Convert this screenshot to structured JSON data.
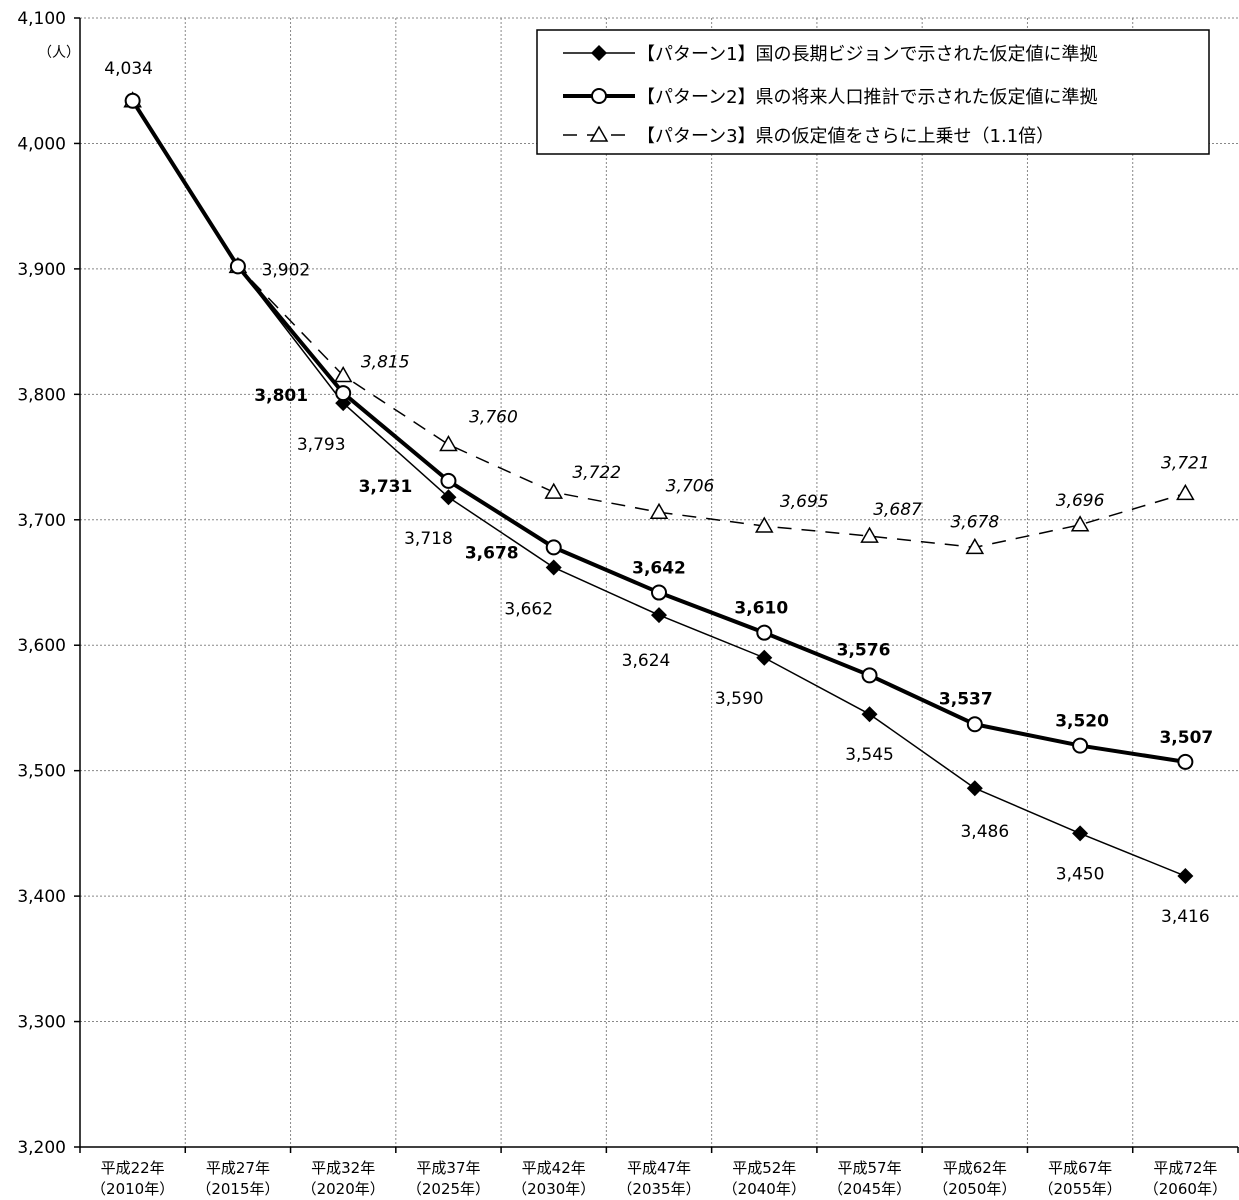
{
  "chart_data": {
    "type": "line",
    "unit_label": "（人）",
    "ylim": [
      3200,
      4100
    ],
    "yticks": [
      3200,
      3300,
      3400,
      3500,
      3600,
      3700,
      3800,
      3900,
      4000,
      4100
    ],
    "ytick_labels": [
      "3,200",
      "3,300",
      "3,400",
      "3,500",
      "3,600",
      "3,700",
      "3,800",
      "3,900",
      "4,000",
      "4,100"
    ],
    "x_labels": [
      [
        "平成22年",
        "（2010年）"
      ],
      [
        "平成27年",
        "（2015年）"
      ],
      [
        "平成32年",
        "（2020年）"
      ],
      [
        "平成37年",
        "（2025年）"
      ],
      [
        "平成42年",
        "（2030年）"
      ],
      [
        "平成47年",
        "（2035年）"
      ],
      [
        "平成52年",
        "（2040年）"
      ],
      [
        "平成57年",
        "（2045年）"
      ],
      [
        "平成62年",
        "（2050年）"
      ],
      [
        "平成67年",
        "（2055年）"
      ],
      [
        "平成72年",
        "（2060年）"
      ]
    ],
    "grid": true,
    "legend_position": "top-right",
    "series": [
      {
        "name": "【パターン1】国の長期ビジョンで示された仮定値に準拠",
        "values": [
          4034,
          3902,
          3793,
          3718,
          3662,
          3624,
          3590,
          3545,
          3486,
          3450,
          3416
        ],
        "labels": [
          "4,034",
          "3,902",
          "3,793",
          "3,718",
          "3,662",
          "3,624",
          "3,590",
          "3,545",
          "3,486",
          "3,450",
          "3,416"
        ],
        "marker": "diamond",
        "line": "thin-solid"
      },
      {
        "name": "【パターン2】県の将来人口推計で示された仮定値に準拠",
        "values": [
          4034,
          3902,
          3801,
          3731,
          3678,
          3642,
          3610,
          3576,
          3537,
          3520,
          3507
        ],
        "labels": [
          "",
          "",
          "3,801",
          "3,731",
          "3,678",
          "3,642",
          "3,610",
          "3,576",
          "3,537",
          "3,520",
          "3,507"
        ],
        "marker": "circle",
        "line": "thick-solid"
      },
      {
        "name": "【パターン3】県の仮定値をさらに上乗せ（1.1倍）",
        "values": [
          4034,
          3902,
          3815,
          3760,
          3722,
          3706,
          3695,
          3687,
          3678,
          3696,
          3721
        ],
        "labels": [
          "",
          "",
          "3,815",
          "3,760",
          "3,722",
          "3,706",
          "3,695",
          "3,687",
          "3,678",
          "3,696",
          "3,721"
        ],
        "marker": "triangle",
        "line": "dashed"
      }
    ]
  }
}
